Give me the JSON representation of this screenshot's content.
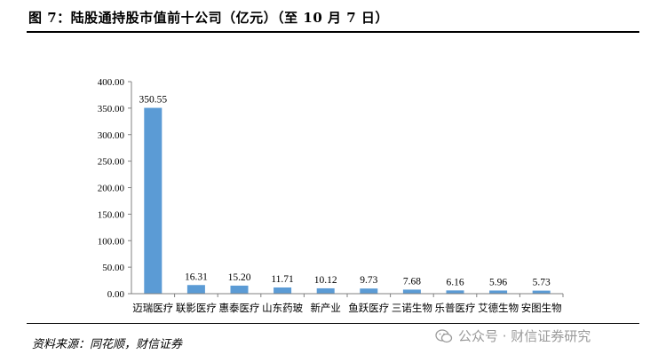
{
  "figure": {
    "title": "图 7：陆股通持股市值前十公司（亿元）（至 10 月 7 日）",
    "source": "资料来源：同花顺，财信证券",
    "watermark": "公众号 · 财信证券研究"
  },
  "colors": {
    "bar": "#5b9bd5",
    "axis": "#808080"
  },
  "chart_data": {
    "type": "bar",
    "categories": [
      "迈瑞医疗",
      "联影医疗",
      "惠泰医疗",
      "山东药玻",
      "新产业",
      "鱼跃医疗",
      "三诺生物",
      "乐普医疗",
      "艾德生物",
      "安图生物"
    ],
    "values": [
      350.55,
      16.31,
      15.2,
      11.71,
      10.12,
      9.73,
      7.68,
      6.16,
      5.96,
      5.73
    ],
    "data_labels": [
      "350.55",
      "16.31",
      "15.20",
      "11.71",
      "10.12",
      "9.73",
      "7.68",
      "6.16",
      "5.96",
      "5.73"
    ],
    "y_ticks": [
      "0.00",
      "50.00",
      "100.00",
      "150.00",
      "200.00",
      "250.00",
      "300.00",
      "350.00",
      "400.00"
    ],
    "ylim": [
      0,
      400
    ],
    "grid": false,
    "legend": "none"
  }
}
